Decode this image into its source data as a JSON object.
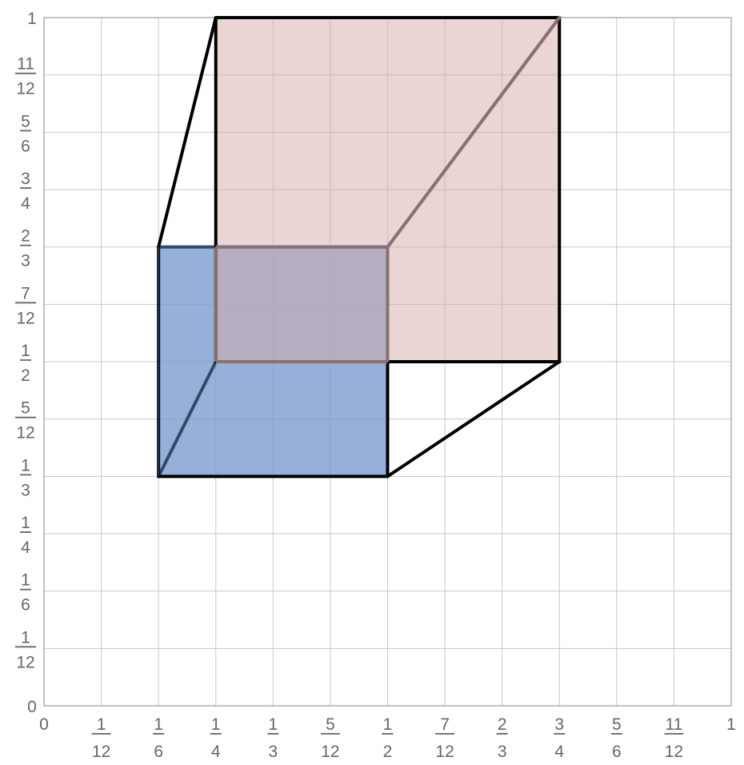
{
  "chart_data": {
    "type": "area",
    "xlim": [
      0,
      1
    ],
    "ylim": [
      0,
      1
    ],
    "grid": true,
    "x_ticks": [
      {
        "value": 0,
        "num": "0",
        "den": ""
      },
      {
        "value": 0.0833333,
        "num": "1",
        "den": "12"
      },
      {
        "value": 0.1666667,
        "num": "1",
        "den": "6"
      },
      {
        "value": 0.25,
        "num": "1",
        "den": "4"
      },
      {
        "value": 0.3333333,
        "num": "1",
        "den": "3"
      },
      {
        "value": 0.4166667,
        "num": "5",
        "den": "12"
      },
      {
        "value": 0.5,
        "num": "1",
        "den": "2"
      },
      {
        "value": 0.5833333,
        "num": "7",
        "den": "12"
      },
      {
        "value": 0.6666667,
        "num": "2",
        "den": "3"
      },
      {
        "value": 0.75,
        "num": "3",
        "den": "4"
      },
      {
        "value": 0.8333333,
        "num": "5",
        "den": "6"
      },
      {
        "value": 0.9166667,
        "num": "11",
        "den": "12"
      },
      {
        "value": 1,
        "num": "1",
        "den": ""
      }
    ],
    "y_ticks": [
      {
        "value": 0,
        "num": "0",
        "den": ""
      },
      {
        "value": 0.0833333,
        "num": "1",
        "den": "12"
      },
      {
        "value": 0.1666667,
        "num": "1",
        "den": "6"
      },
      {
        "value": 0.25,
        "num": "1",
        "den": "4"
      },
      {
        "value": 0.3333333,
        "num": "1",
        "den": "3"
      },
      {
        "value": 0.4166667,
        "num": "5",
        "den": "12"
      },
      {
        "value": 0.5,
        "num": "1",
        "den": "2"
      },
      {
        "value": 0.5833333,
        "num": "7",
        "den": "12"
      },
      {
        "value": 0.6666667,
        "num": "2",
        "den": "3"
      },
      {
        "value": 0.75,
        "num": "3",
        "den": "4"
      },
      {
        "value": 0.8333333,
        "num": "5",
        "den": "6"
      },
      {
        "value": 0.9166667,
        "num": "11",
        "den": "12"
      },
      {
        "value": 1,
        "num": "1",
        "den": ""
      }
    ],
    "shapes": [
      {
        "kind": "rectangle",
        "fill": "#7a9acc",
        "fill_opacity": 0.78,
        "stroke": "#2e4a6e",
        "corners": [
          [
            0.1666667,
            0.3333333
          ],
          [
            0.5,
            0.3333333
          ],
          [
            0.5,
            0.6666667
          ],
          [
            0.1666667,
            0.6666667
          ]
        ]
      },
      {
        "kind": "rectangle",
        "fill": "#d7a9a9",
        "fill_opacity": 0.5,
        "stroke": "#8a7070",
        "corners": [
          [
            0.25,
            0.5
          ],
          [
            0.75,
            0.5
          ],
          [
            0.75,
            1
          ],
          [
            0.25,
            1
          ]
        ]
      }
    ],
    "segments": [
      {
        "from": [
          0.1666667,
          0.3333333
        ],
        "to": [
          0.25,
          0.5
        ],
        "color": "#2e4a6e"
      },
      {
        "from": [
          0.1666667,
          0.6666667
        ],
        "to": [
          0.25,
          1
        ],
        "color": "#000000"
      },
      {
        "from": [
          0.5,
          0.3333333
        ],
        "to": [
          0.75,
          0.5
        ],
        "color": "#000000"
      },
      {
        "from": [
          0.5,
          0.6666667
        ],
        "to": [
          0.75,
          1
        ],
        "color": "#8a7070"
      }
    ],
    "outline_color": "#000000"
  }
}
